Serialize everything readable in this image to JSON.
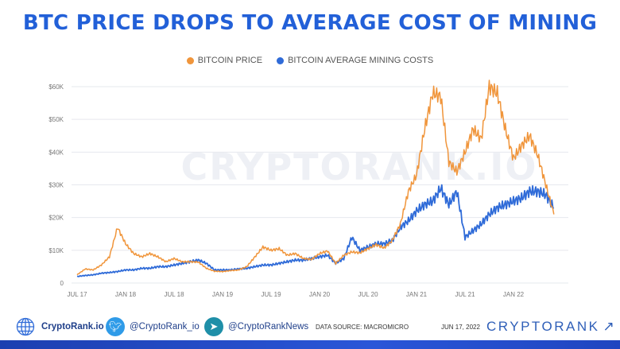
{
  "title": "BTC PRICE DROPS TO AVERAGE COST OF MINING",
  "colors": {
    "price": "#f0953b",
    "cost": "#2f6bd8",
    "title": "#2260d8",
    "grid": "#e6e8ee"
  },
  "watermark": "CRYPTORANK.IO",
  "chart_data": {
    "type": "line",
    "title": "BTC PRICE DROPS TO AVERAGE COST OF MINING",
    "legend_position": "top",
    "grid": true,
    "ylim": [
      0,
      60000
    ],
    "y_ticks": [
      "0",
      "$10K",
      "$20K",
      "$30K",
      "$40K",
      "$50K",
      "$60K"
    ],
    "x_ticks": [
      "JUL 17",
      "JAN 18",
      "JUL 18",
      "JAN 19",
      "JUL 19",
      "JAN 20",
      "JUL 20",
      "JAN 21",
      "JUL 21",
      "JAN 22"
    ],
    "x": [
      "2017-07",
      "2017-08",
      "2017-09",
      "2017-10",
      "2017-11",
      "2017-12",
      "2018-01",
      "2018-02",
      "2018-03",
      "2018-04",
      "2018-05",
      "2018-06",
      "2018-07",
      "2018-08",
      "2018-09",
      "2018-10",
      "2018-11",
      "2018-12",
      "2019-01",
      "2019-02",
      "2019-03",
      "2019-04",
      "2019-05",
      "2019-06",
      "2019-07",
      "2019-08",
      "2019-09",
      "2019-10",
      "2019-11",
      "2019-12",
      "2020-01",
      "2020-02",
      "2020-03",
      "2020-04",
      "2020-05",
      "2020-06",
      "2020-07",
      "2020-08",
      "2020-09",
      "2020-10",
      "2020-11",
      "2020-12",
      "2021-01",
      "2021-02",
      "2021-03",
      "2021-04",
      "2021-05",
      "2021-06",
      "2021-07",
      "2021-08",
      "2021-09",
      "2021-10",
      "2021-11",
      "2021-12",
      "2022-01",
      "2022-02",
      "2022-03",
      "2022-04",
      "2022-05",
      "2022-06"
    ],
    "series": [
      {
        "name": "BITCOIN PRICE",
        "values": [
          2500,
          4300,
          4000,
          5500,
          8000,
          17000,
          12000,
          9000,
          8000,
          9000,
          8000,
          6500,
          7500,
          6500,
          6500,
          6400,
          4500,
          3600,
          3500,
          3800,
          4000,
          5000,
          8000,
          11000,
          10000,
          10500,
          8500,
          9000,
          7500,
          7200,
          9000,
          9800,
          6000,
          8500,
          9500,
          9200,
          10500,
          11700,
          10700,
          13000,
          18000,
          28000,
          33000,
          47000,
          58000,
          57000,
          37000,
          34000,
          40000,
          47000,
          44000,
          60000,
          58000,
          47000,
          38000,
          42000,
          45000,
          39000,
          30000,
          21000
        ]
      },
      {
        "name": "BITCOIN AVERAGE MINING COSTS",
        "values": [
          2000,
          2300,
          2500,
          3000,
          3200,
          3500,
          4000,
          4000,
          4500,
          4500,
          5000,
          5000,
          5500,
          6000,
          6500,
          7000,
          6000,
          4000,
          4000,
          4000,
          4300,
          4500,
          5000,
          5500,
          5500,
          6000,
          6500,
          7000,
          7000,
          7500,
          8000,
          8500,
          6000,
          7500,
          14000,
          10000,
          11000,
          12000,
          12000,
          13000,
          17000,
          19000,
          22000,
          24000,
          25000,
          29000,
          24000,
          28000,
          14000,
          16000,
          18000,
          21000,
          23000,
          24000,
          25000,
          26000,
          28000,
          28000,
          27000,
          23000
        ]
      }
    ]
  },
  "footer": {
    "website": "CryptoRank.io",
    "twitter": "@CryptoRank_io",
    "telegram": "@CryptoRankNews",
    "source": "DATA SOURCE: MACROMICRO",
    "date": "JUN 17, 2022",
    "brand": "CRYPTORANK",
    "brand_arrow": "↗"
  }
}
